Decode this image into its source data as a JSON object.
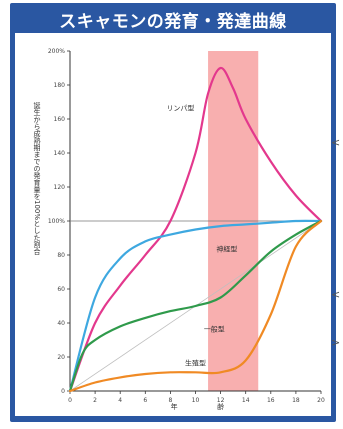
{
  "title": "スキャモンの発育・発達曲線",
  "colors": {
    "frame": "#2a57a2",
    "highlight": "#f7a1a1",
    "lymphoid": "#e3388d",
    "neural": "#3ea8e0",
    "general": "#2f9a4b",
    "reproductive": "#f08a24",
    "reference": "#bfbfbf"
  },
  "chart_data": {
    "type": "line",
    "title": "スキャモンの発育・発達曲線",
    "xlabel": "年齢",
    "ylabel": "誕生から成熟期までの発育量を100%とした割合",
    "xlim": [
      0,
      20
    ],
    "ylim": [
      0,
      200
    ],
    "x_ticks": [
      "0",
      "2",
      "4",
      "6",
      "8",
      "10",
      "12",
      "14",
      "16",
      "18",
      "20"
    ],
    "y_ticks": [
      "0",
      "20",
      "40",
      "60",
      "80",
      "100%",
      "120",
      "140",
      "160",
      "180",
      "200%"
    ],
    "highlight_range": [
      11,
      15
    ],
    "grid": false,
    "series": [
      {
        "name": "リンパ型",
        "color": "#e3388d",
        "x": [
          0,
          2,
          4,
          6,
          8,
          10,
          11,
          12,
          13,
          14,
          16,
          18,
          20
        ],
        "y": [
          0,
          40,
          62,
          80,
          100,
          140,
          175,
          190,
          178,
          160,
          135,
          115,
          100
        ]
      },
      {
        "name": "神経型",
        "color": "#3ea8e0",
        "x": [
          0,
          2,
          4,
          6,
          8,
          10,
          12,
          14,
          16,
          18,
          20
        ],
        "y": [
          0,
          55,
          78,
          88,
          92,
          95,
          97,
          98,
          99,
          100,
          100
        ]
      },
      {
        "name": "一般型",
        "color": "#2f9a4b",
        "x": [
          0,
          1,
          2,
          4,
          6,
          8,
          10,
          12,
          14,
          16,
          18,
          20
        ],
        "y": [
          0,
          22,
          30,
          38,
          43,
          47,
          50,
          55,
          68,
          82,
          92,
          100
        ]
      },
      {
        "name": "生殖型",
        "color": "#f08a24",
        "x": [
          0,
          2,
          4,
          6,
          8,
          10,
          12,
          14,
          16,
          18,
          20
        ],
        "y": [
          0,
          5,
          8,
          10,
          11,
          11,
          11,
          18,
          45,
          85,
          100
        ]
      }
    ]
  }
}
